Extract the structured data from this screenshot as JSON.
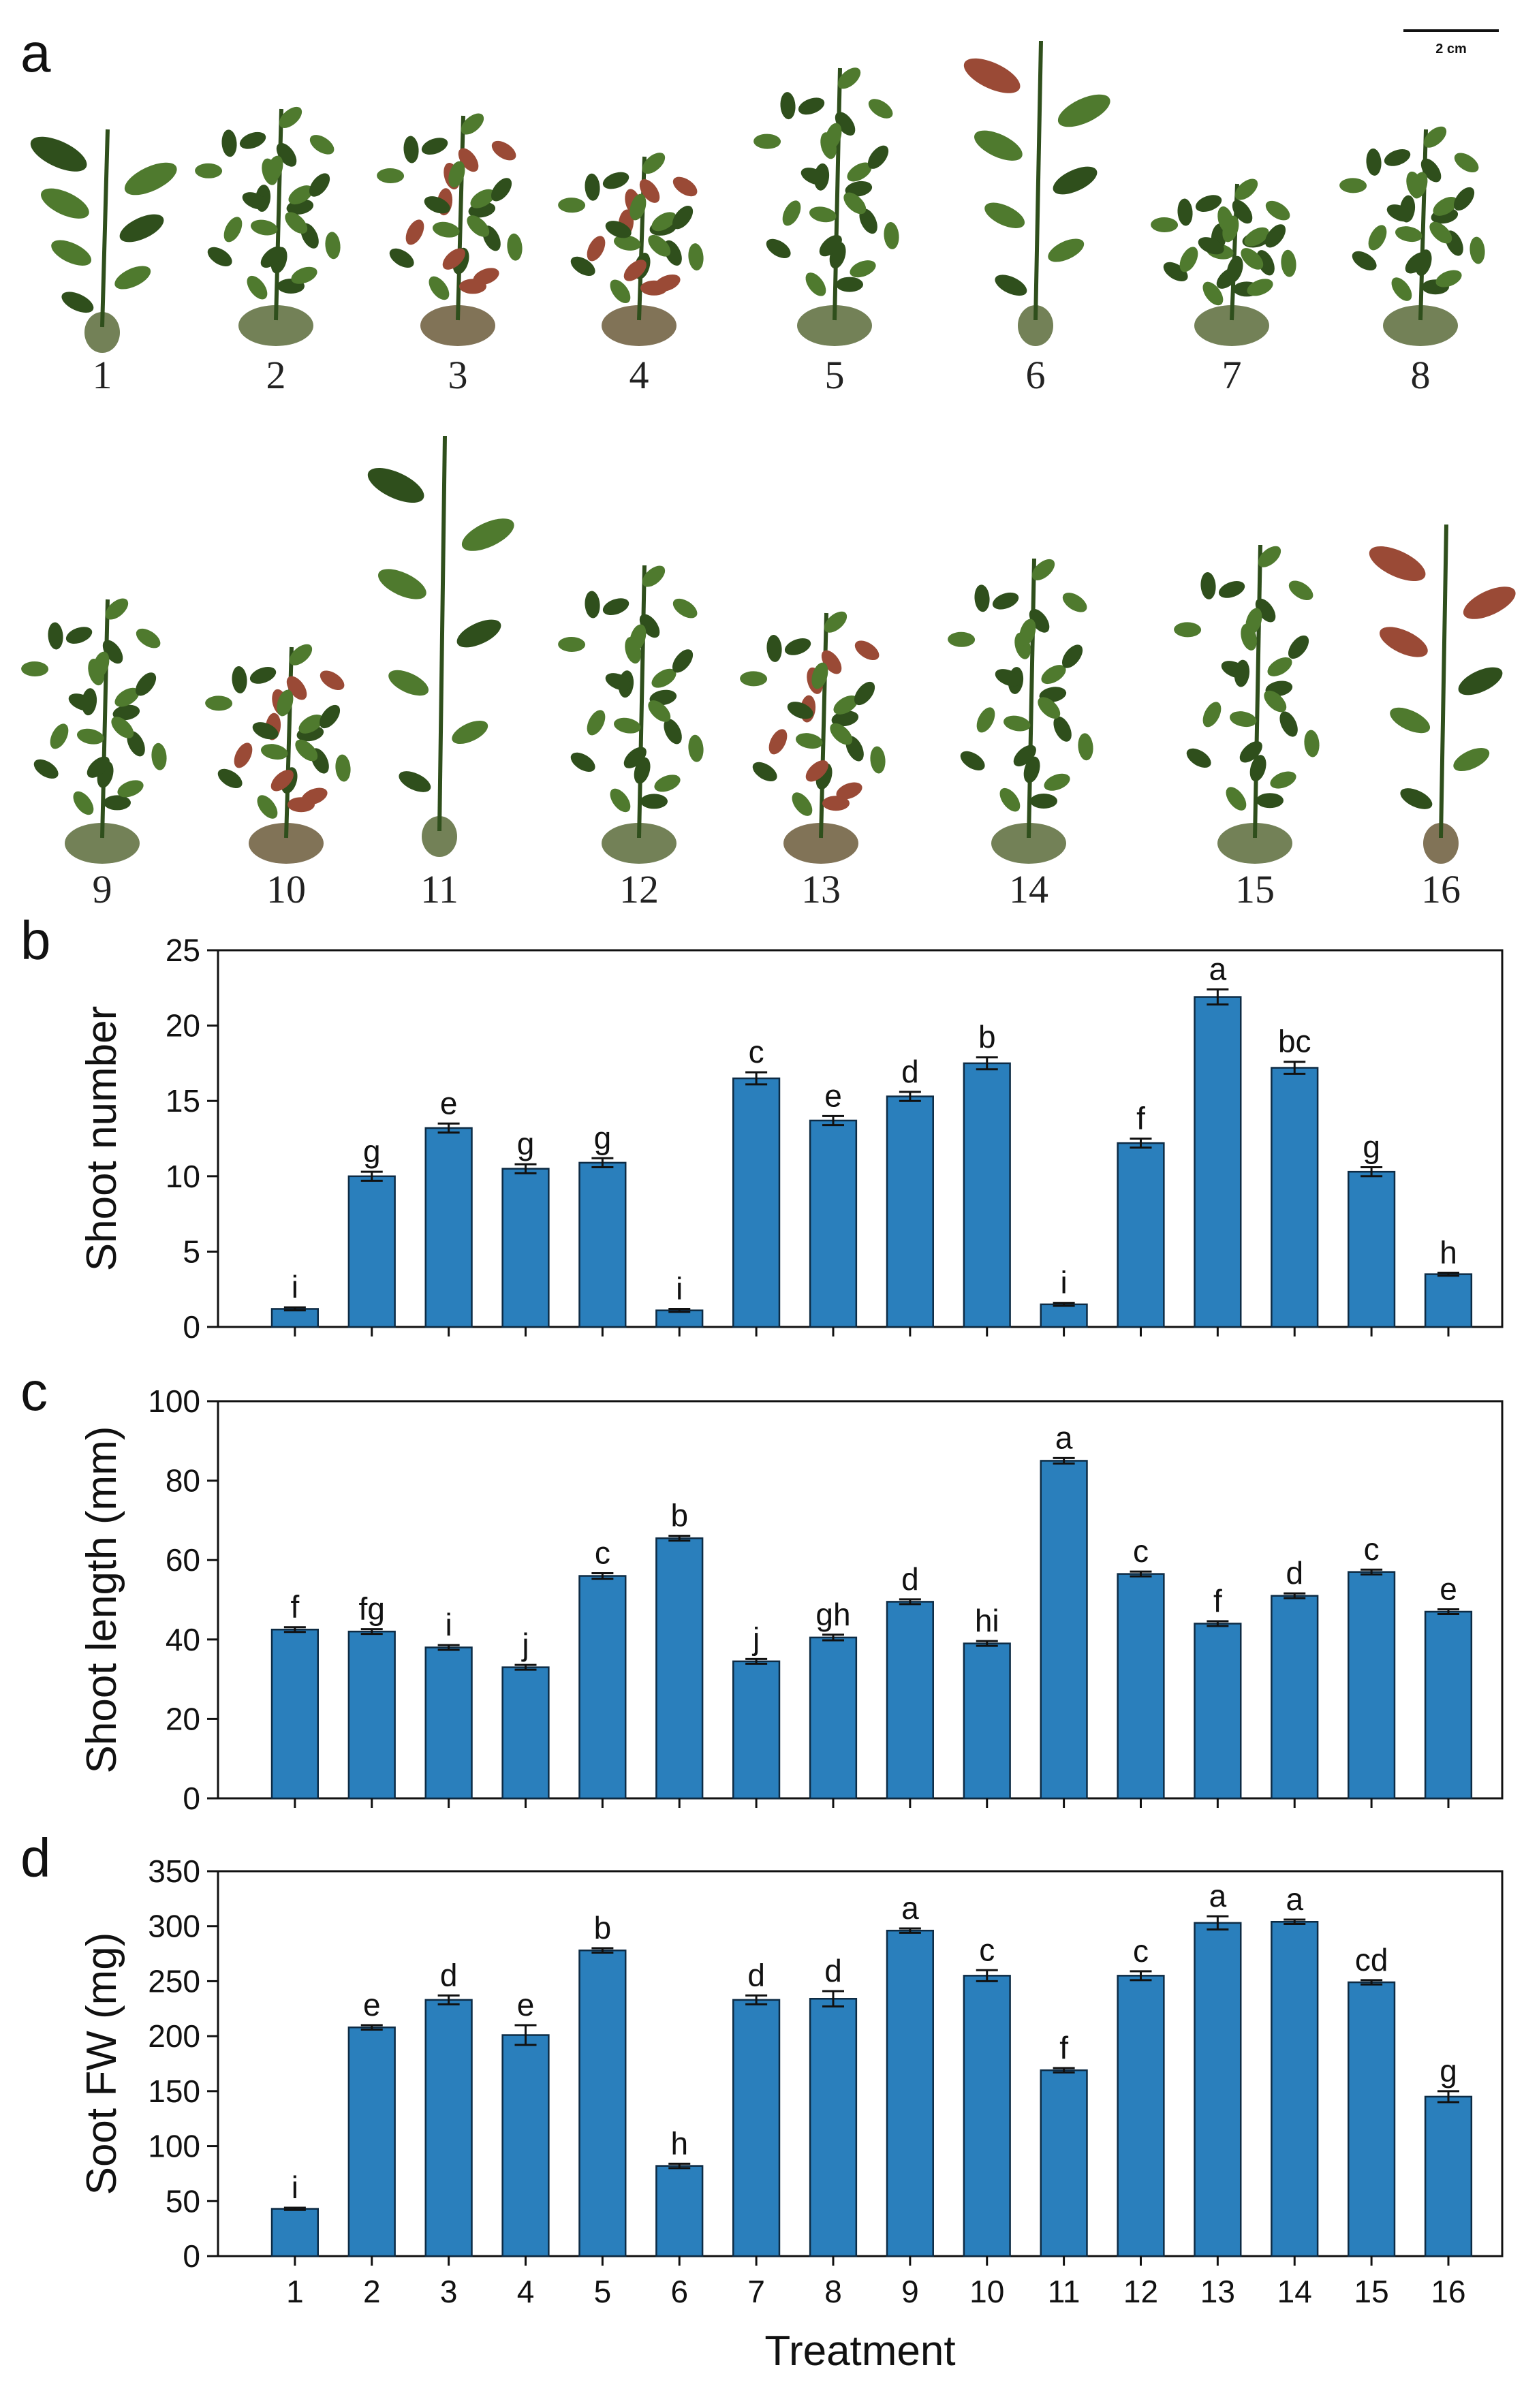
{
  "panel_a": {
    "label": "a",
    "scale_bar": "2 cm",
    "plant_labels": [
      "1",
      "2",
      "3",
      "4",
      "5",
      "6",
      "7",
      "8",
      "9",
      "10",
      "11",
      "12",
      "13",
      "14",
      "15",
      "16"
    ]
  },
  "colors": {
    "bar": "#2a7fbc",
    "bar_edge": "#0d2b44",
    "leaf": "#4f7a2e",
    "leaf_dark": "#2f4f1c",
    "leaf_red": "#9a4a36"
  },
  "chart_data": [
    {
      "type": "bar",
      "panel": "b",
      "title": "",
      "xlabel": "",
      "ylabel": "Shoot number",
      "ylim": [
        0,
        25
      ],
      "yticks": [
        0,
        5,
        10,
        15,
        20,
        25
      ],
      "categories": [
        "1",
        "2",
        "3",
        "4",
        "5",
        "6",
        "7",
        "8",
        "9",
        "10",
        "11",
        "12",
        "13",
        "14",
        "15",
        "16"
      ],
      "values": [
        1.2,
        10.0,
        13.2,
        10.5,
        10.9,
        1.1,
        16.5,
        13.7,
        15.3,
        17.5,
        1.5,
        12.2,
        21.9,
        17.2,
        10.3,
        3.5
      ],
      "errors": [
        0.1,
        0.3,
        0.3,
        0.3,
        0.3,
        0.1,
        0.4,
        0.3,
        0.3,
        0.4,
        0.1,
        0.3,
        0.5,
        0.4,
        0.3,
        0.1
      ],
      "letters": [
        "i",
        "g",
        "e",
        "g",
        "g",
        "i",
        "c",
        "e",
        "d",
        "b",
        "i",
        "f",
        "a",
        "bc",
        "g",
        "h"
      ]
    },
    {
      "type": "bar",
      "panel": "c",
      "title": "",
      "xlabel": "",
      "ylabel": "Shoot length (mm)",
      "ylim": [
        0,
        100
      ],
      "yticks": [
        0,
        20,
        40,
        60,
        80,
        100
      ],
      "categories": [
        "1",
        "2",
        "3",
        "4",
        "5",
        "6",
        "7",
        "8",
        "9",
        "10",
        "11",
        "12",
        "13",
        "14",
        "15",
        "16"
      ],
      "values": [
        42.5,
        42.0,
        38.0,
        33.0,
        56.0,
        65.5,
        34.5,
        40.5,
        49.5,
        39.0,
        85.0,
        56.5,
        44.0,
        51.0,
        57.0,
        47.0
      ],
      "errors": [
        0.6,
        0.6,
        0.6,
        0.6,
        0.7,
        0.6,
        0.6,
        0.7,
        0.6,
        0.6,
        0.7,
        0.6,
        0.6,
        0.6,
        0.6,
        0.6
      ],
      "letters": [
        "f",
        "fg",
        "i",
        "j",
        "c",
        "b",
        "j",
        "gh",
        "d",
        "hi",
        "a",
        "c",
        "f",
        "d",
        "c",
        "e"
      ]
    },
    {
      "type": "bar",
      "panel": "d",
      "title": "",
      "xlabel": "Treatment",
      "ylabel": "Soot FW (mg)",
      "ylim": [
        0,
        350
      ],
      "yticks": [
        0,
        50,
        100,
        150,
        200,
        250,
        300,
        350
      ],
      "categories": [
        "1",
        "2",
        "3",
        "4",
        "5",
        "6",
        "7",
        "8",
        "9",
        "10",
        "11",
        "12",
        "13",
        "14",
        "15",
        "16"
      ],
      "values": [
        43,
        208,
        233,
        201,
        278,
        82,
        233,
        234,
        296,
        255,
        169,
        255,
        303,
        304,
        249,
        145
      ],
      "errors": [
        1,
        2,
        4,
        9,
        2,
        2,
        4,
        7,
        2,
        5,
        2,
        4,
        6,
        2,
        2,
        5
      ],
      "letters": [
        "i",
        "e",
        "d",
        "e",
        "b",
        "h",
        "d",
        "d",
        "a",
        "c",
        "f",
        "c",
        "a",
        "a",
        "cd",
        "g"
      ]
    }
  ]
}
